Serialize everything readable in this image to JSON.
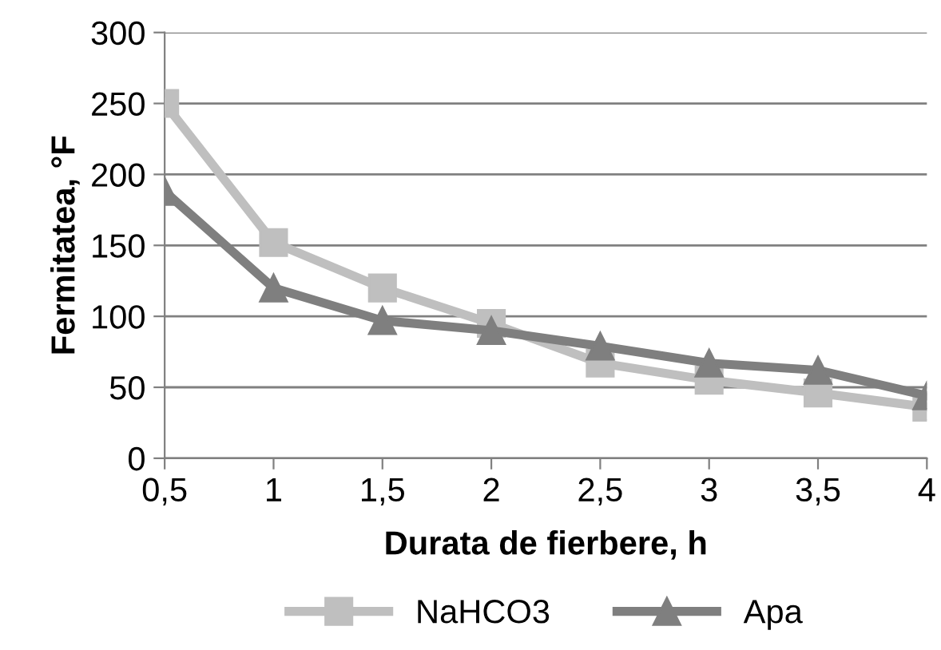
{
  "chart_data": {
    "type": "line",
    "xlabel": "Durata de fierbere, h",
    "ylabel": "Fermitatea, °F",
    "x": [
      0.5,
      1,
      1.5,
      2,
      2.5,
      3,
      3.5,
      4
    ],
    "series": [
      {
        "name": "NaHCO3",
        "color": "#bfbfbf",
        "marker": "square",
        "values": [
          250,
          152,
          120,
          95,
          67,
          55,
          46,
          36
        ]
      },
      {
        "name": "Apa",
        "color": "#7f7f7f",
        "marker": "triangle",
        "values": [
          188,
          120,
          97,
          90,
          79,
          67,
          62,
          44
        ]
      }
    ],
    "xlim": [
      0.5,
      4
    ],
    "xticks": [
      {
        "value": 0.5,
        "label": "0,5"
      },
      1,
      {
        "value": 1.5,
        "label": "1,5"
      },
      2,
      {
        "value": 2.5,
        "label": "2,5"
      },
      3,
      {
        "value": 3.5,
        "label": "3,5"
      },
      4
    ],
    "ylim": [
      0,
      300
    ],
    "yticks": [
      0,
      50,
      100,
      150,
      200,
      250,
      300
    ],
    "grid": "y",
    "legend": "bottom",
    "line_style": "solid"
  }
}
